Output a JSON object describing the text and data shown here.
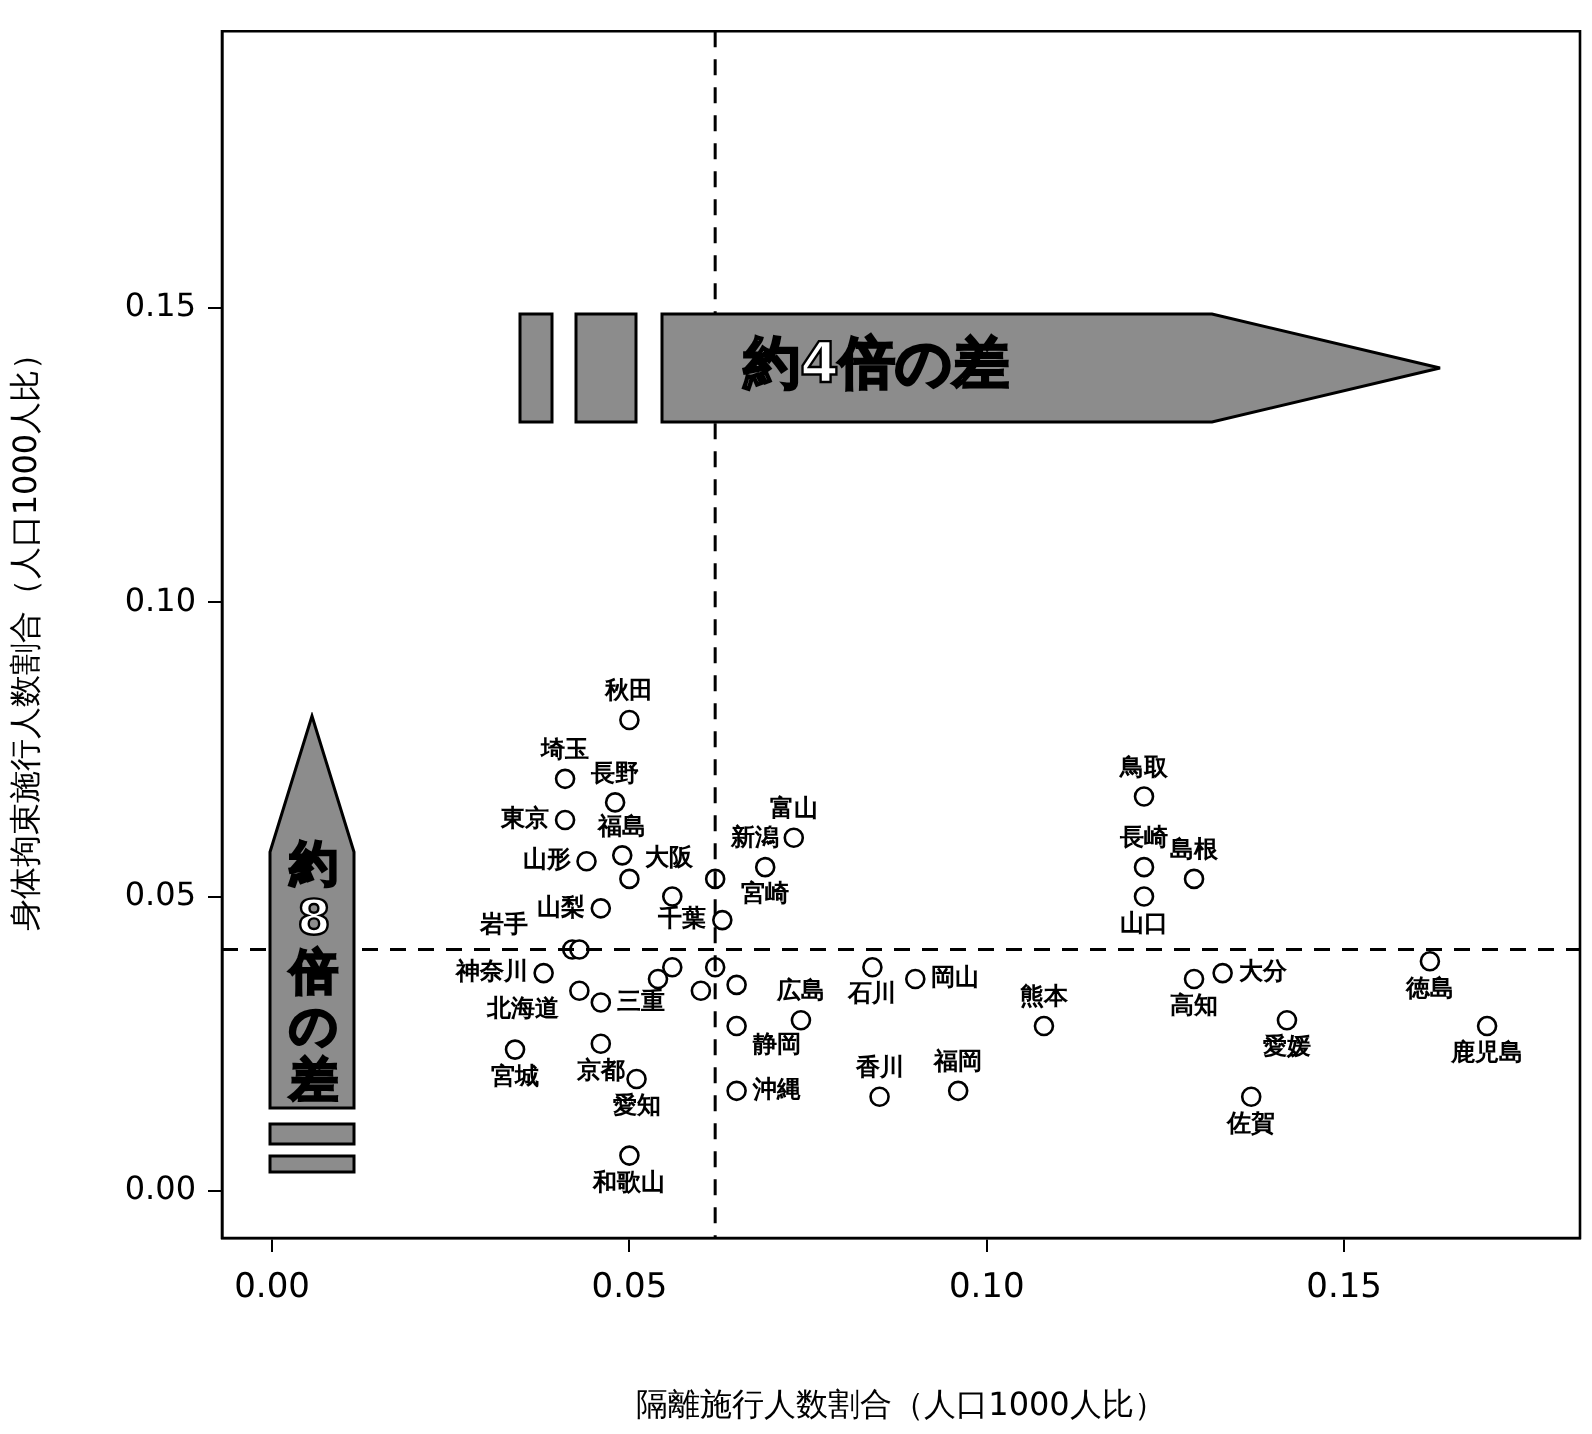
{
  "chart_data": {
    "type": "scatter",
    "xlabel": "隔離施行人数割合（人口1000人比）",
    "ylabel": "身体拘束施行人数割合（人口1000人比）",
    "xlim": [
      -0.007,
      0.183
    ],
    "ylim": [
      -0.008,
      0.197
    ],
    "xticks": [
      {
        "value": 0,
        "label": "0.00"
      },
      {
        "value": 0.05,
        "label": "0.05"
      },
      {
        "value": 0.1,
        "label": "0.10"
      },
      {
        "value": 0.15,
        "label": "0.15"
      }
    ],
    "yticks": [
      {
        "value": 0,
        "label": "0.00"
      },
      {
        "value": 0.05,
        "label": "0.05"
      },
      {
        "value": 0.1,
        "label": "0.10"
      },
      {
        "value": 0.15,
        "label": "0.15"
      }
    ],
    "grid": false,
    "legend": false,
    "marker": "circle",
    "series": [
      {
        "color": "#000000",
        "x": [
          0.05,
          0.041,
          0.048,
          0.041,
          0.049,
          0.044,
          0.05,
          0.056,
          0.062,
          0.069,
          0.073,
          0.046,
          0.063,
          0.042,
          0.043,
          0.038,
          0.043,
          0.046,
          0.046,
          0.034,
          0.051,
          0.054,
          0.056,
          0.06,
          0.062,
          0.065,
          0.065,
          0.065,
          0.074,
          0.084,
          0.085,
          0.05,
          0.122,
          0.122,
          0.122,
          0.129,
          0.162,
          0.133,
          0.129,
          0.09,
          0.108,
          0.142,
          0.17,
          0.137,
          0.096
        ],
        "values": [
          0.08,
          0.07,
          0.066,
          0.063,
          0.057,
          0.056,
          0.053,
          0.05,
          0.053,
          0.055,
          0.06,
          0.048,
          0.046,
          0.041,
          0.041,
          0.037,
          0.034,
          0.032,
          0.025,
          0.024,
          0.019,
          0.036,
          0.038,
          0.034,
          0.038,
          0.035,
          0.028,
          0.017,
          0.029,
          0.038,
          0.016,
          0.006,
          0.067,
          0.055,
          0.05,
          0.053,
          0.039,
          0.037,
          0.036,
          0.036,
          0.028,
          0.029,
          0.028,
          0.016,
          0.017
        ],
        "value_labels": [
          "秋田",
          "埼玉",
          "長野",
          "東京",
          "福島",
          "山形",
          "大阪",
          null,
          "新潟",
          "宮崎",
          "富山",
          "山梨",
          "千葉",
          "岩手",
          "北海道",
          "神奈川",
          null,
          "三重",
          "京都",
          "宮城",
          "愛知",
          null,
          null,
          null,
          null,
          null,
          "静岡",
          "沖縄",
          "広島",
          "石川",
          "香川",
          "和歌山",
          "鳥取",
          "長崎",
          "山口",
          "島根",
          "徳島",
          "大分",
          "高知",
          "岡山",
          "熊本",
          "愛媛",
          "鹿児島",
          "佐賀",
          "福岡"
        ]
      }
    ],
    "ref_lines": [
      {
        "axis": "x",
        "value": 0.062,
        "line_style": "dashed",
        "color": "#000000"
      },
      {
        "axis": "y",
        "value": 0.041,
        "line_style": "dashed",
        "color": "#000000"
      }
    ],
    "annotations": [
      "約4倍の差",
      "約8倍の差"
    ]
  }
}
